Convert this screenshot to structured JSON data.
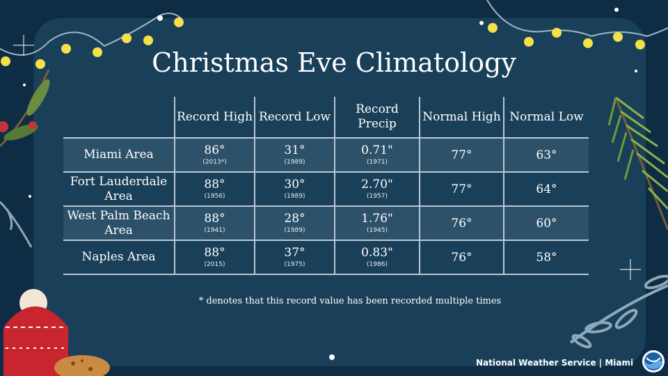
{
  "title": "Christmas Eve Climatology",
  "table": {
    "headers": [
      "Record High",
      "Record Low",
      "Record Precip",
      "Normal High",
      "Normal Low"
    ],
    "rows": [
      {
        "location": "Miami Area",
        "record_high": "86°",
        "record_high_year": "(2013*)",
        "record_low": "31°",
        "record_low_year": "(1989)",
        "record_precip": "0.71\"",
        "record_precip_year": "(1971)",
        "normal_high": "77°",
        "normal_low": "63°"
      },
      {
        "location": "Fort Lauderdale Area",
        "record_high": "88°",
        "record_high_year": "(1956)",
        "record_low": "30°",
        "record_low_year": "(1989)",
        "record_precip": "2.70\"",
        "record_precip_year": "(1957)",
        "normal_high": "77°",
        "normal_low": "64°"
      },
      {
        "location": "West Palm Beach Area",
        "record_high": "88°",
        "record_high_year": "(1941)",
        "record_low": "28°",
        "record_low_year": "(1989)",
        "record_precip": "1.76\"",
        "record_precip_year": "(1945)",
        "normal_high": "76°",
        "normal_low": "60°"
      },
      {
        "location": "Naples Area",
        "record_high": "88°",
        "record_high_year": "(2015)",
        "record_low": "37°",
        "record_low_year": "(1975)",
        "record_precip": "0.83\"",
        "record_precip_year": "(1986)",
        "normal_high": "76°",
        "normal_low": "58°"
      }
    ]
  },
  "footnote": "* denotes that this record value has been recorded multiple times",
  "footer_credit": "National Weather Service | Miami",
  "colors": {
    "background": "#0e2d45",
    "panel": "#1a4059",
    "row_shade": "#2c5168",
    "grid": "#b9c9d5",
    "bulb": "#f5e04a",
    "hat": "#c8252f"
  }
}
